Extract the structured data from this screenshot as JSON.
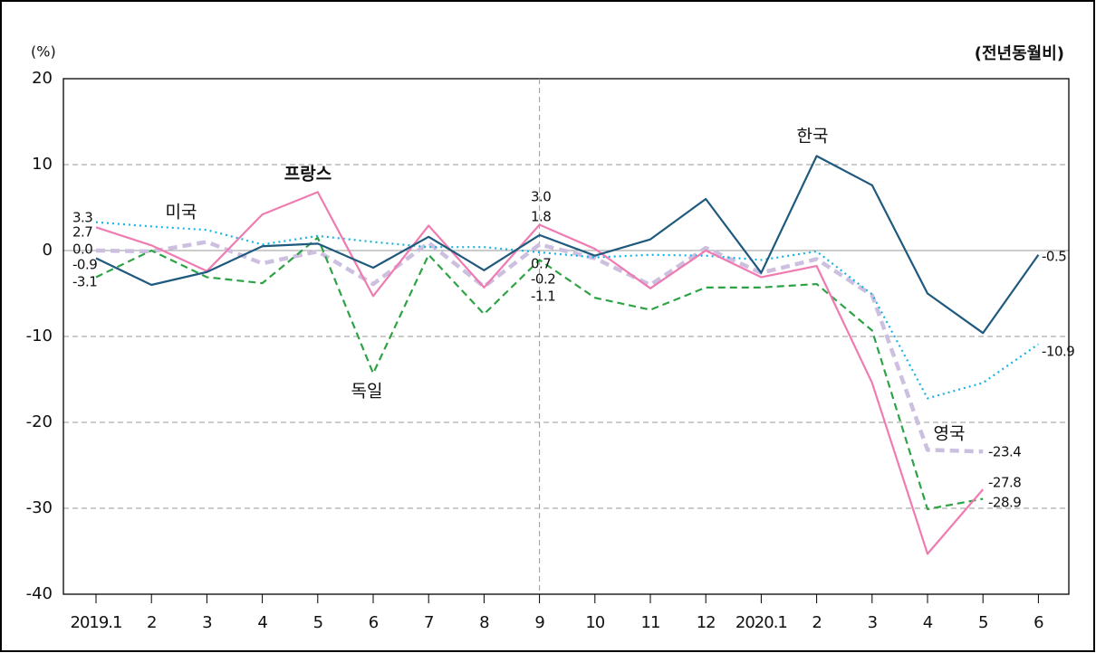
{
  "chart_data": {
    "type": "line",
    "y_unit_label": "(%)",
    "subtitle": "(전년동월비)",
    "categories": [
      "2019.1",
      "2",
      "3",
      "4",
      "5",
      "6",
      "7",
      "8",
      "9",
      "10",
      "11",
      "12",
      "2020.1",
      "2",
      "3",
      "4",
      "5",
      "6"
    ],
    "ylim": [
      -40,
      20
    ],
    "yticks": [
      20,
      10,
      0,
      -10,
      -20,
      -30,
      -40
    ],
    "grid": true,
    "series": [
      {
        "name": "한국",
        "color": "#1f5a7e",
        "style": "solid",
        "values": [
          -0.9,
          -4.0,
          -2.5,
          0.5,
          0.8,
          -2.0,
          1.6,
          -2.3,
          1.8,
          -0.6,
          1.3,
          6.0,
          -2.6,
          11.0,
          7.6,
          -5.0,
          -9.6,
          -0.5
        ],
        "value_labels": [
          "-0.9",
          null,
          null,
          null,
          null,
          null,
          null,
          null,
          "1.8",
          null,
          null,
          null,
          null,
          null,
          null,
          null,
          null,
          "-0.5"
        ]
      },
      {
        "name": "미국",
        "color": "#19b3e3",
        "style": "dotted",
        "values": [
          3.3,
          2.8,
          2.4,
          0.7,
          1.7,
          1.0,
          0.4,
          0.4,
          -0.2,
          -0.8,
          -0.5,
          -0.6,
          -1.1,
          -0.1,
          -5.1,
          -17.2,
          -15.4,
          -10.9
        ],
        "value_labels": [
          "3.3",
          null,
          null,
          null,
          null,
          null,
          null,
          null,
          "-0.2",
          null,
          null,
          null,
          null,
          null,
          null,
          null,
          null,
          "-10.9"
        ]
      },
      {
        "name": "프랑스",
        "color": "#ef7bb1",
        "style": "solid",
        "values": [
          2.7,
          0.6,
          -2.4,
          4.2,
          6.8,
          -5.3,
          2.9,
          -4.3,
          3.0,
          0.2,
          -4.4,
          0.0,
          -3.1,
          -1.8,
          -15.4,
          -35.3,
          -27.8,
          null
        ],
        "value_labels": [
          "2.7",
          null,
          null,
          null,
          null,
          null,
          null,
          null,
          "3.0",
          null,
          null,
          null,
          null,
          null,
          null,
          null,
          "-27.8",
          null
        ]
      },
      {
        "name": "영국",
        "color": "#cdbfe0",
        "style": "dashed-thick",
        "values": [
          0.0,
          -0.1,
          1.0,
          -1.5,
          -0.1,
          -3.9,
          0.9,
          -4.2,
          0.7,
          -0.9,
          -4.0,
          0.3,
          -2.6,
          -1.0,
          -5.2,
          -23.2,
          -23.4,
          null
        ],
        "value_labels": [
          "0.0",
          null,
          null,
          null,
          null,
          null,
          null,
          null,
          "0.7",
          null,
          null,
          null,
          null,
          null,
          null,
          null,
          "-23.4",
          null
        ]
      },
      {
        "name": "독일",
        "color": "#2ea346",
        "style": "dashed",
        "values": [
          -3.1,
          0.0,
          -3.1,
          -3.8,
          1.5,
          -14.3,
          -0.5,
          -7.4,
          -1.1,
          -5.5,
          -6.9,
          -4.3,
          -4.3,
          -3.9,
          -9.3,
          -30.1,
          -28.9,
          null
        ],
        "value_labels": [
          "-3.1",
          null,
          null,
          null,
          null,
          null,
          null,
          null,
          "-1.1",
          null,
          null,
          null,
          null,
          null,
          null,
          null,
          "-28.9",
          null
        ]
      }
    ]
  }
}
